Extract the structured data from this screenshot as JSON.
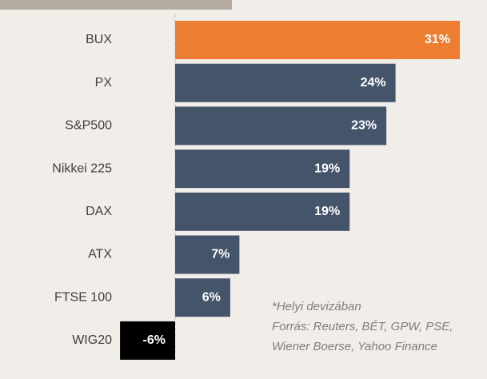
{
  "chart_data": {
    "type": "bar",
    "orientation": "horizontal",
    "categories": [
      "BUX",
      "PX",
      "S&P500",
      "Nikkei 225",
      "DAX",
      "ATX",
      "FTSE 100",
      "WIG20"
    ],
    "values": [
      31,
      24,
      23,
      19,
      19,
      7,
      6,
      -6
    ],
    "value_labels": [
      "31%",
      "24%",
      "23%",
      "19%",
      "19%",
      "7%",
      "6%",
      "-6%"
    ],
    "colors": [
      "#ed7d31",
      "#44546a",
      "#44546a",
      "#44546a",
      "#44546a",
      "#44546a",
      "#44546a",
      "#000000"
    ],
    "notes": [
      "*Helyi devizában",
      "Forrás: Reuters, BÉT, GPW, PSE,",
      "Wiener Boerse, Yahoo Finance"
    ]
  }
}
